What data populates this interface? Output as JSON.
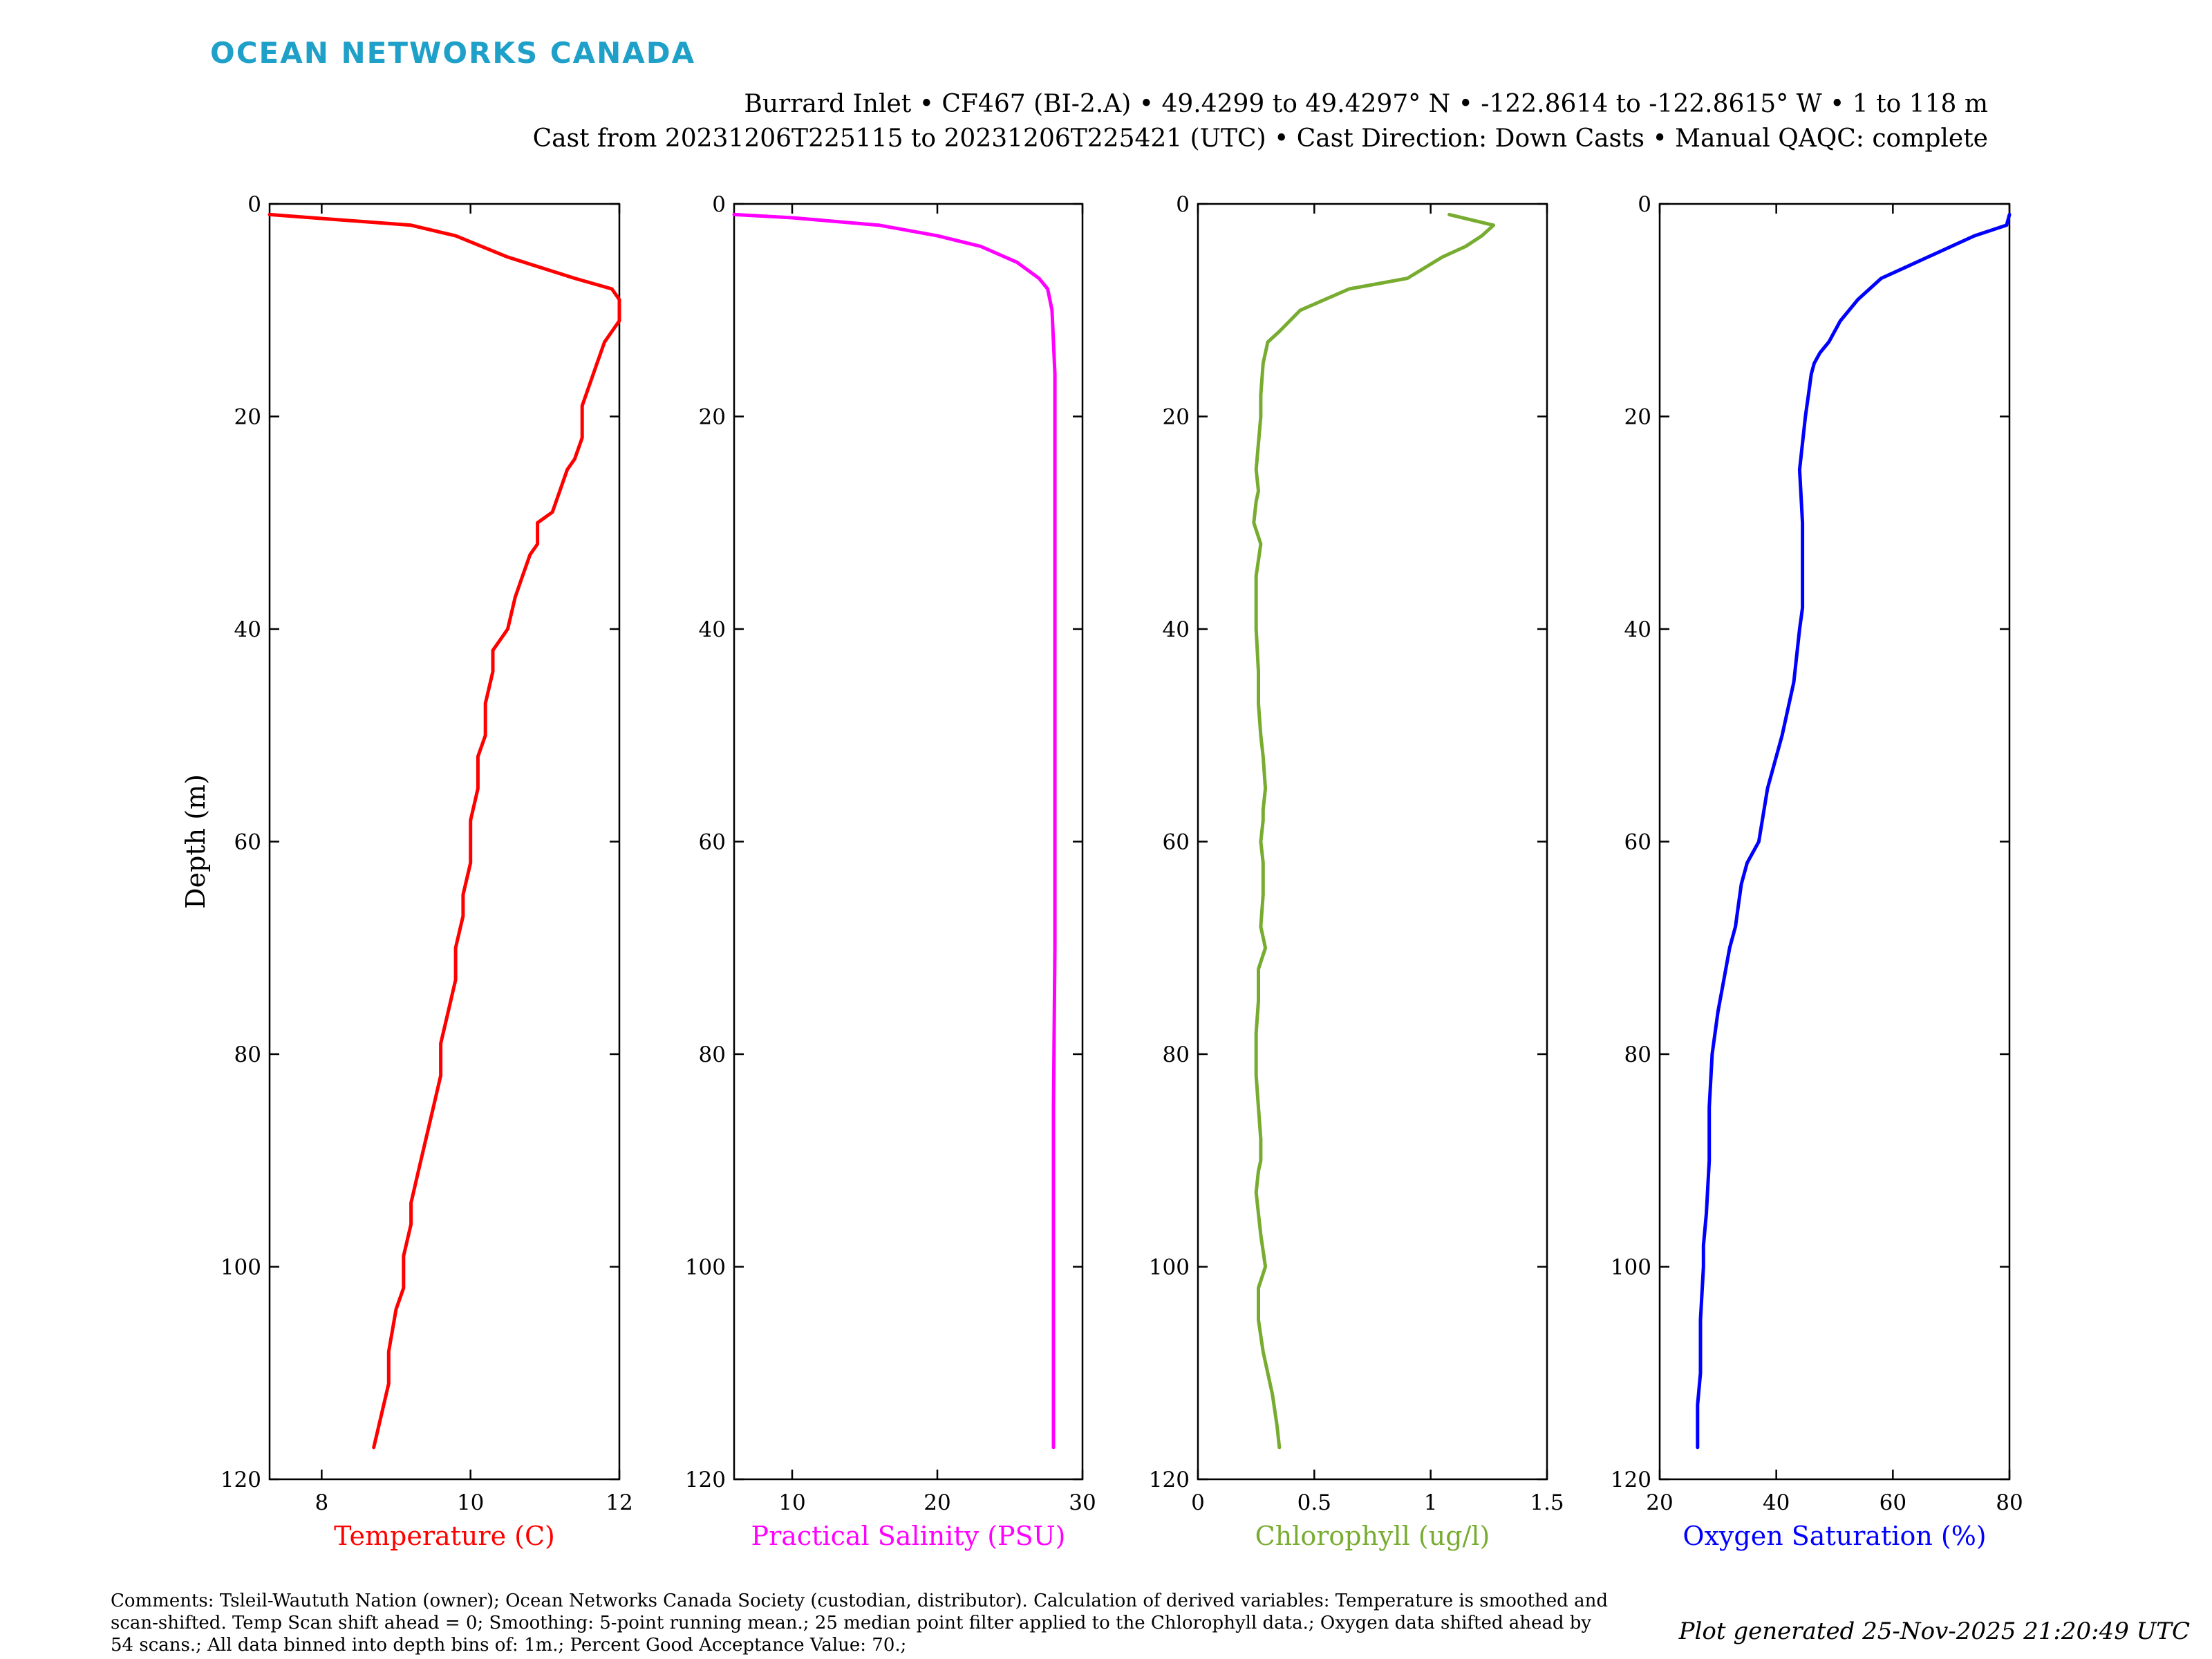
{
  "header": {
    "logo": "OCEAN NETWORKS CANADA",
    "line1": "Burrard Inlet • CF467 (BI-2.A) • 49.4299 to 49.4297° N • -122.8614 to -122.8615° W • 1 to 118 m",
    "line2": "Cast from 20231206T225115 to 20231206T225421 (UTC) • Cast Direction: Down Casts • Manual QAQC: complete"
  },
  "colors": {
    "logo": "#1ea0c8",
    "temperature": "#ff0000",
    "salinity": "#ff00ff",
    "chlorophyll": "#77ac30",
    "oxygen": "#0000ff"
  },
  "footer": {
    "comments": "Comments: Tsleil-Waututh Nation (owner); Ocean Networks Canada Society (custodian, distributor). Calculation of derived variables: Temperature is smoothed and scan-shifted. Temp Scan shift ahead = 0; Smoothing: 5-point running mean.; 25 median point filter applied to the Chlorophyll data.; Oxygen data shifted ahead by 54 scans.; All data binned into depth bins of: 1m.; Percent Good Acceptance Value: 70.;",
    "generated": "Plot generated 25-Nov-2025 21:20:49 UTC"
  },
  "chart_data": [
    {
      "type": "line",
      "xlabel": "Temperature (C)",
      "ylabel": "Depth (m)",
      "xlim": [
        7.3,
        12
      ],
      "ylim": [
        0,
        120
      ],
      "y_reversed": true,
      "xticks": [
        8,
        10,
        12
      ],
      "yticks": [
        0,
        20,
        40,
        60,
        80,
        100,
        120
      ],
      "color": "#ff0000",
      "x": [
        7.3,
        9.2,
        9.8,
        10.5,
        11.4,
        11.9,
        12.0,
        12.0,
        11.9,
        11.8,
        11.7,
        11.6,
        11.5,
        11.5,
        11.4,
        11.3,
        11.2,
        11.1,
        10.9,
        10.9,
        10.8,
        10.7,
        10.6,
        10.5,
        10.3,
        10.3,
        10.2,
        10.2,
        10.1,
        10.1,
        10.0,
        10.0,
        9.9,
        9.9,
        9.8,
        9.8,
        9.7,
        9.6,
        9.6,
        9.5,
        9.4,
        9.3,
        9.2,
        9.2,
        9.1,
        9.1,
        9.0,
        8.9,
        8.9,
        8.8,
        8.7
      ],
      "y": [
        1,
        2,
        3,
        5,
        7,
        8,
        9,
        11,
        12,
        13,
        15,
        17,
        19,
        22,
        24,
        25,
        27,
        29,
        30,
        32,
        33,
        35,
        37,
        40,
        42,
        44,
        47,
        50,
        52,
        55,
        58,
        62,
        65,
        67,
        70,
        73,
        76,
        79,
        82,
        85,
        88,
        91,
        94,
        96,
        99,
        102,
        104,
        108,
        111,
        114,
        117
      ]
    },
    {
      "type": "line",
      "xlabel": "Practical Salinity (PSU)",
      "xlim": [
        6,
        30
      ],
      "ylim": [
        0,
        120
      ],
      "y_reversed": true,
      "xticks": [
        10,
        20,
        30
      ],
      "yticks": [
        0,
        20,
        40,
        60,
        80,
        100,
        120
      ],
      "color": "#ff00ff",
      "x": [
        6,
        10,
        16,
        20,
        23,
        25.5,
        27,
        27.6,
        27.9,
        28.0,
        28.1,
        28.1,
        28.1,
        28.1,
        28.1,
        28.1,
        28.0,
        28.0,
        28.0,
        28.0
      ],
      "y": [
        1,
        1.3,
        2,
        3,
        4,
        5.5,
        7,
        8,
        10,
        13,
        16,
        20,
        30,
        40,
        55,
        70,
        85,
        100,
        110,
        117
      ]
    },
    {
      "type": "line",
      "xlabel": "Chlorophyll (ug/l)",
      "xlim": [
        0,
        1.5
      ],
      "ylim": [
        0,
        120
      ],
      "y_reversed": true,
      "xticks": [
        0,
        0.5,
        1,
        1.5
      ],
      "xtick_labels": [
        "0",
        "0.5",
        "1",
        "1.5"
      ],
      "yticks": [
        0,
        20,
        40,
        60,
        80,
        100,
        120
      ],
      "color": "#77ac30",
      "x": [
        1.08,
        1.27,
        1.22,
        1.15,
        1.05,
        0.9,
        0.65,
        0.44,
        0.35,
        0.3,
        0.28,
        0.27,
        0.27,
        0.25,
        0.26,
        0.25,
        0.24,
        0.27,
        0.25,
        0.25,
        0.26,
        0.26,
        0.27,
        0.28,
        0.29,
        0.28,
        0.28,
        0.27,
        0.28,
        0.28,
        0.27,
        0.29,
        0.26,
        0.26,
        0.25,
        0.25,
        0.25,
        0.26,
        0.27,
        0.27,
        0.26,
        0.25,
        0.26,
        0.27,
        0.29,
        0.26,
        0.26,
        0.28,
        0.3,
        0.32,
        0.34,
        0.35
      ],
      "y": [
        1,
        2,
        3,
        4,
        5,
        7,
        8,
        10,
        12,
        13,
        15,
        18,
        20,
        25,
        27,
        28,
        30,
        32,
        35,
        40,
        44,
        47,
        50,
        52,
        55,
        57,
        58,
        60,
        62,
        65,
        68,
        70,
        72,
        75,
        78,
        80,
        82,
        85,
        88,
        90,
        91,
        93,
        95,
        97,
        100,
        102,
        105,
        108,
        110,
        112,
        115,
        117
      ]
    },
    {
      "type": "line",
      "xlabel": "Oxygen Saturation (%)",
      "xlim": [
        20,
        80
      ],
      "ylim": [
        0,
        120
      ],
      "y_reversed": true,
      "xticks": [
        20,
        40,
        60,
        80
      ],
      "yticks": [
        0,
        20,
        40,
        60,
        80,
        100,
        120
      ],
      "color": "#0000ff",
      "x": [
        80,
        79.5,
        74,
        70,
        66,
        62,
        58,
        54,
        51,
        49,
        47.5,
        46.5,
        46,
        45.5,
        45,
        44,
        44.5,
        44.5,
        44,
        43,
        41,
        38.5,
        37,
        35,
        34,
        33.5,
        33,
        32,
        31,
        30,
        29,
        28.5,
        28.5,
        28,
        27.5,
        27.5,
        27,
        27,
        26.5,
        26.5
      ],
      "y": [
        1,
        2,
        3,
        4,
        5,
        6,
        7,
        9,
        11,
        13,
        14,
        15,
        16,
        18,
        20,
        25,
        30,
        38,
        40,
        45,
        50,
        55,
        60,
        62,
        64,
        66,
        68,
        70,
        73,
        76,
        80,
        85,
        90,
        95,
        98,
        100,
        105,
        110,
        113,
        117
      ]
    }
  ]
}
